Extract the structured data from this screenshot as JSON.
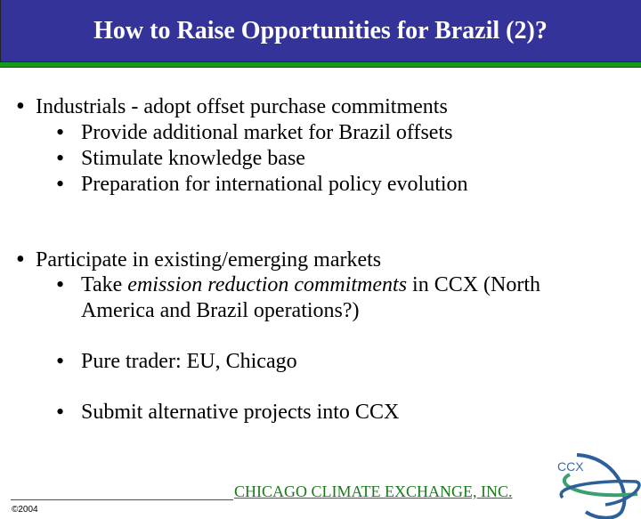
{
  "slide": {
    "title": "How to Raise Opportunities for Brazil (2)?",
    "bullets": [
      {
        "text": "Industrials -  adopt offset purchase commitments",
        "sub": [
          "Provide additional market for Brazil offsets",
          "Stimulate knowledge base",
          "Preparation for international policy evolution"
        ]
      },
      {
        "text": "Participate in existing/emerging markets",
        "sub_take": {
          "pre": "Take ",
          "italic": "emission reduction commitments",
          "post": " in CCX (North",
          "line2": "America and Brazil operations?)"
        },
        "sub": [
          "Pure trader: EU, Chicago",
          "Submit alternative projects into CCX"
        ]
      }
    ]
  },
  "footer": {
    "company": "CHICAGO CLIMATE EXCHANGE, INC.",
    "copyright": "©2004",
    "logo_text": "CCX"
  },
  "colors": {
    "title_bar": "#333399",
    "accent_green": "#1a9a1a",
    "footer_green": "#1a7a1a"
  }
}
